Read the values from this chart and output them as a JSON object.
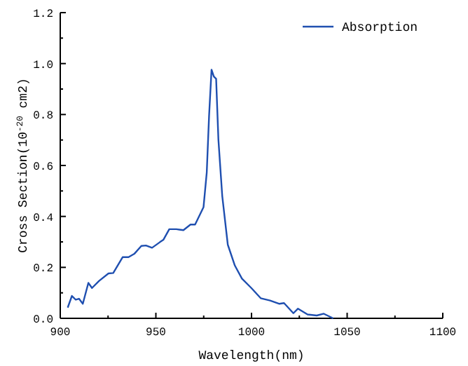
{
  "chart_data": {
    "type": "line",
    "xlabel": "Wavelength(nm)",
    "ylabel": "Cross Section(10$^{-20}$ cm2)",
    "xlim": [
      900,
      1100
    ],
    "xticks": [
      900,
      950,
      1000,
      1050,
      1100
    ],
    "ylim": [
      0,
      1.2
    ],
    "yticks": [
      {
        "value": 0,
        "label": "0.0"
      },
      0.2,
      0.4,
      0.6,
      0.8,
      {
        "value": 1,
        "label": "1.0"
      },
      1.2
    ],
    "legend": "top right",
    "grid": false,
    "series": [
      {
        "name": "Absorption",
        "color": "#1f4fb0",
        "x": [
          903.9,
          906.1,
          908.1,
          909.8,
          911.8,
          914.7,
          916.6,
          920.3,
          925.2,
          927.7,
          932.6,
          935.7,
          938.7,
          942.4,
          944.8,
          948.0,
          952.1,
          953.9,
          957.0,
          960.7,
          964.4,
          968.1,
          970.5,
          974.9,
          976.6,
          977.8,
          979.1,
          980.3,
          981.5,
          982.7,
          984.7,
          987.6,
          991.3,
          995.0,
          999.9,
          1004.8,
          1009.7,
          1014.6,
          1017.0,
          1021.9,
          1024.3,
          1029.3,
          1034.1,
          1037.8,
          1042.7
        ],
        "values": [
          0.042,
          0.088,
          0.073,
          0.077,
          0.057,
          0.139,
          0.119,
          0.147,
          0.176,
          0.178,
          0.24,
          0.24,
          0.253,
          0.284,
          0.286,
          0.277,
          0.299,
          0.308,
          0.35,
          0.35,
          0.346,
          0.368,
          0.368,
          0.436,
          0.573,
          0.793,
          0.976,
          0.949,
          0.94,
          0.7,
          0.48,
          0.289,
          0.207,
          0.156,
          0.119,
          0.079,
          0.07,
          0.057,
          0.06,
          0.02,
          0.038,
          0.015,
          0.011,
          0.018,
          0.0
        ]
      }
    ]
  }
}
